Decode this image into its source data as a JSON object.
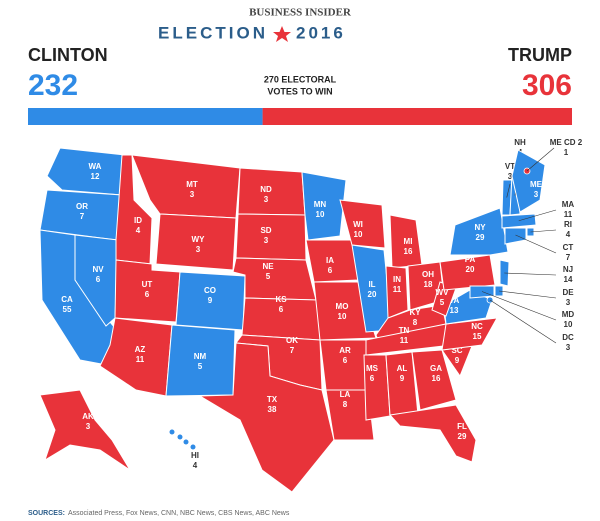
{
  "header": {
    "publisher": "BUSINESS INSIDER",
    "title": "ELECTION",
    "year": "2016"
  },
  "candidates": [
    {
      "name": "CLINTON",
      "votes": 232,
      "color": "#2f8be6"
    },
    {
      "name": "TRUMP",
      "votes": 306,
      "color": "#e8333a"
    }
  ],
  "threshold": {
    "line1": "270 ELECTORAL",
    "line2": "VOTES TO WIN"
  },
  "states": [
    {
      "abbr": "WA",
      "ev": 12,
      "color": "#2f8be6"
    },
    {
      "abbr": "OR",
      "ev": 7,
      "color": "#2f8be6"
    },
    {
      "abbr": "CA",
      "ev": 55,
      "color": "#2f8be6"
    },
    {
      "abbr": "NV",
      "ev": 6,
      "color": "#2f8be6"
    },
    {
      "abbr": "ID",
      "ev": 4,
      "color": "#e8333a"
    },
    {
      "abbr": "MT",
      "ev": 3,
      "color": "#e8333a"
    },
    {
      "abbr": "WY",
      "ev": 3,
      "color": "#e8333a"
    },
    {
      "abbr": "UT",
      "ev": 6,
      "color": "#e8333a"
    },
    {
      "abbr": "CO",
      "ev": 9,
      "color": "#2f8be6"
    },
    {
      "abbr": "AZ",
      "ev": 11,
      "color": "#e8333a"
    },
    {
      "abbr": "NM",
      "ev": 5,
      "color": "#2f8be6"
    },
    {
      "abbr": "ND",
      "ev": 3,
      "color": "#e8333a"
    },
    {
      "abbr": "SD",
      "ev": 3,
      "color": "#e8333a"
    },
    {
      "abbr": "NE",
      "ev": 5,
      "color": "#e8333a"
    },
    {
      "abbr": "KS",
      "ev": 6,
      "color": "#e8333a"
    },
    {
      "abbr": "OK",
      "ev": 7,
      "color": "#e8333a"
    },
    {
      "abbr": "TX",
      "ev": 38,
      "color": "#e8333a"
    },
    {
      "abbr": "MN",
      "ev": 10,
      "color": "#2f8be6"
    },
    {
      "abbr": "IA",
      "ev": 6,
      "color": "#e8333a"
    },
    {
      "abbr": "MO",
      "ev": 10,
      "color": "#e8333a"
    },
    {
      "abbr": "AR",
      "ev": 6,
      "color": "#e8333a"
    },
    {
      "abbr": "LA",
      "ev": 8,
      "color": "#e8333a"
    },
    {
      "abbr": "WI",
      "ev": 10,
      "color": "#e8333a"
    },
    {
      "abbr": "IL",
      "ev": 20,
      "color": "#2f8be6"
    },
    {
      "abbr": "MI",
      "ev": 16,
      "color": "#e8333a"
    },
    {
      "abbr": "IN",
      "ev": 11,
      "color": "#e8333a"
    },
    {
      "abbr": "OH",
      "ev": 18,
      "color": "#e8333a"
    },
    {
      "abbr": "KY",
      "ev": 8,
      "color": "#e8333a"
    },
    {
      "abbr": "TN",
      "ev": 11,
      "color": "#e8333a"
    },
    {
      "abbr": "MS",
      "ev": 6,
      "color": "#e8333a"
    },
    {
      "abbr": "AL",
      "ev": 9,
      "color": "#e8333a"
    },
    {
      "abbr": "GA",
      "ev": 16,
      "color": "#e8333a"
    },
    {
      "abbr": "FL",
      "ev": 29,
      "color": "#e8333a"
    },
    {
      "abbr": "SC",
      "ev": 9,
      "color": "#e8333a"
    },
    {
      "abbr": "NC",
      "ev": 15,
      "color": "#e8333a"
    },
    {
      "abbr": "VA",
      "ev": 13,
      "color": "#2f8be6"
    },
    {
      "abbr": "WV",
      "ev": 5,
      "color": "#e8333a"
    },
    {
      "abbr": "PA",
      "ev": 20,
      "color": "#e8333a"
    },
    {
      "abbr": "NY",
      "ev": 29,
      "color": "#2f8be6"
    },
    {
      "abbr": "VT",
      "ev": 3,
      "color": "#2f8be6"
    },
    {
      "abbr": "NH",
      "ev": 4,
      "color": "#2f8be6"
    },
    {
      "abbr": "ME",
      "ev": 3,
      "color": "#2f8be6"
    },
    {
      "abbr": "ME CD 2",
      "ev": 1,
      "color": "#e8333a"
    },
    {
      "abbr": "MA",
      "ev": 11,
      "color": "#2f8be6"
    },
    {
      "abbr": "RI",
      "ev": 4,
      "color": "#2f8be6"
    },
    {
      "abbr": "CT",
      "ev": 7,
      "color": "#2f8be6"
    },
    {
      "abbr": "NJ",
      "ev": 14,
      "color": "#2f8be6"
    },
    {
      "abbr": "DE",
      "ev": 3,
      "color": "#2f8be6"
    },
    {
      "abbr": "MD",
      "ev": 10,
      "color": "#2f8be6"
    },
    {
      "abbr": "DC",
      "ev": 3,
      "color": "#2f8be6"
    },
    {
      "abbr": "AK",
      "ev": 3,
      "color": "#e8333a"
    },
    {
      "abbr": "HI",
      "ev": 4,
      "color": "#2f8be6"
    }
  ],
  "footer": {
    "sources_label": "SOURCES:",
    "sources": "Associated Press, Fox News, CNN, NBC News, CBS News, ABC News"
  }
}
